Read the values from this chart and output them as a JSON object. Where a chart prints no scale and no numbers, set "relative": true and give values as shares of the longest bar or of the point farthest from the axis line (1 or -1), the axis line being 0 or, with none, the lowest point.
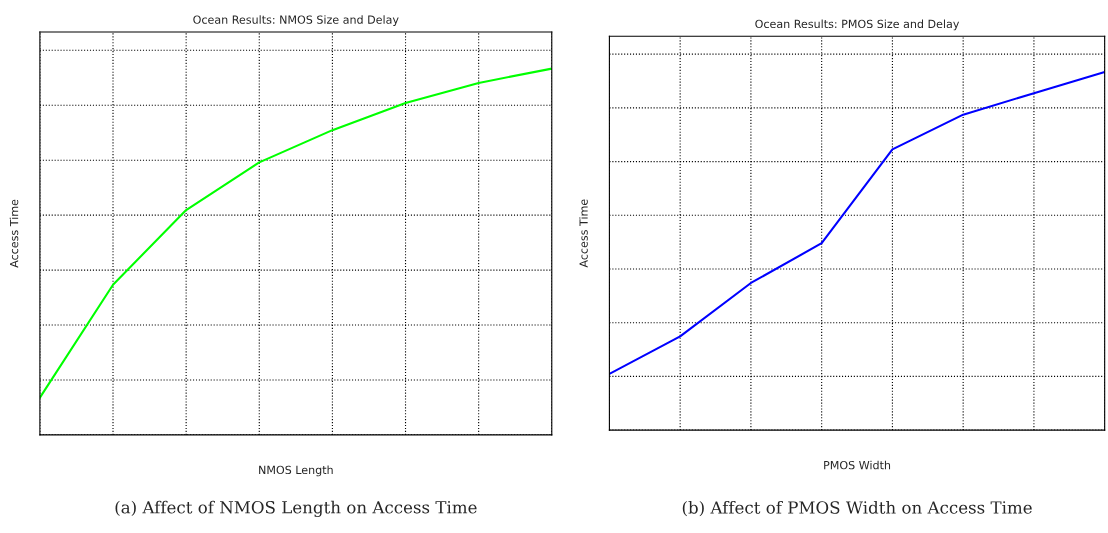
{
  "chart_data": [
    {
      "type": "line",
      "title": "Ocean Results: NMOS Size and Delay",
      "xlabel": "NMOS Length",
      "ylabel": "Access Time",
      "relative": true,
      "grid": true,
      "tick_labels": false,
      "categories": [
        null,
        null,
        null,
        null,
        null,
        null,
        null,
        null
      ],
      "series": [
        {
          "color": "#00ff00",
          "values": [
            0.102,
            0.41,
            0.614,
            0.744,
            0.832,
            0.906,
            0.961,
            1
          ]
        }
      ],
      "annotations": [
        "(a) Affect of NMOS Length on Access Time"
      ]
    },
    {
      "type": "line",
      "title": "Ocean Results: PMOS Size and Delay",
      "xlabel": "PMOS Width",
      "ylabel": "Access Time",
      "relative": true,
      "grid": true,
      "tick_labels": false,
      "categories": [
        null,
        null,
        null,
        null,
        null,
        null,
        null,
        null
      ],
      "series": [
        {
          "color": "#0000ff",
          "values": [
            0.157,
            0.262,
            0.411,
            0.522,
            0.784,
            0.881,
            0.941,
            1
          ]
        }
      ],
      "annotations": [
        "(b) Affect of PMOS Width on Access Time"
      ]
    }
  ]
}
